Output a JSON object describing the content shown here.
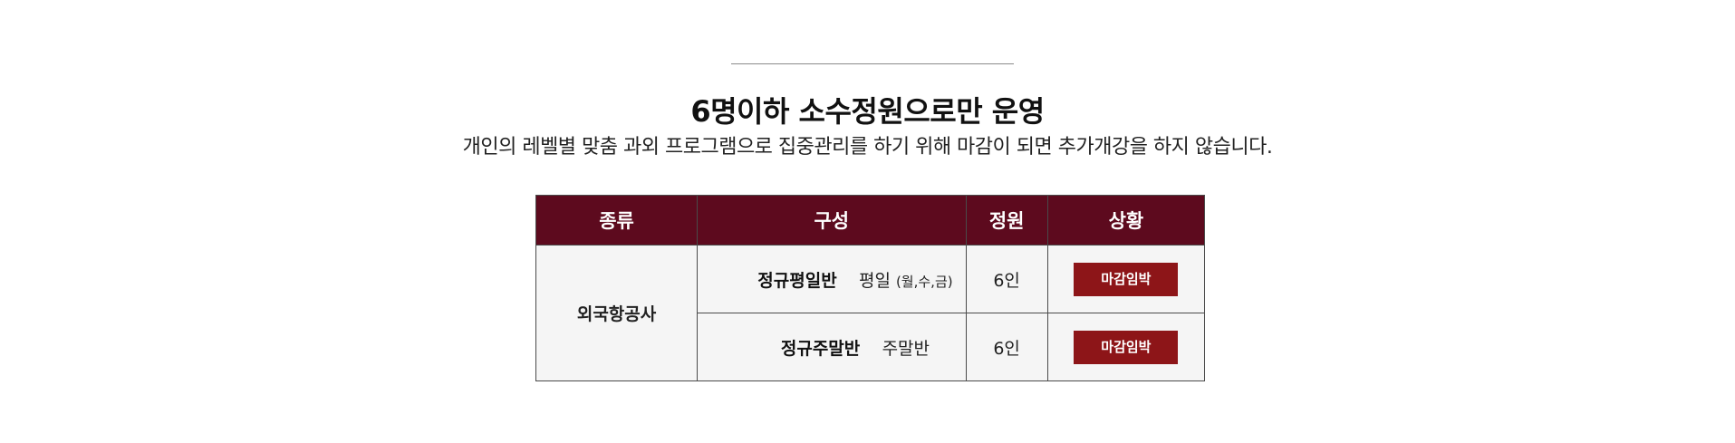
{
  "headline": "6명이하 소수정원으로만 운영",
  "subline": "개인의 레벨별 맞춤 과외 프로그램으로 집중관리를 하기 위해 마감이 되면 추가개강을 하지 않습니다.",
  "table": {
    "headers": {
      "type": "종류",
      "composition": "구성",
      "capacity": "정원",
      "status": "상황"
    },
    "category": "외국항공사",
    "rows": [
      {
        "name": "정규평일반",
        "desc": "평일",
        "days": "(월,수,금)",
        "capacity": "6인",
        "status": "마감임박"
      },
      {
        "name": "정규주말반",
        "desc": "주말반",
        "days": "",
        "capacity": "6인",
        "status": "마감임박"
      }
    ]
  },
  "colors": {
    "header_bg": "#5d0a1e",
    "status_button_bg": "#8d1518",
    "cell_bg": "#f5f5f5"
  }
}
